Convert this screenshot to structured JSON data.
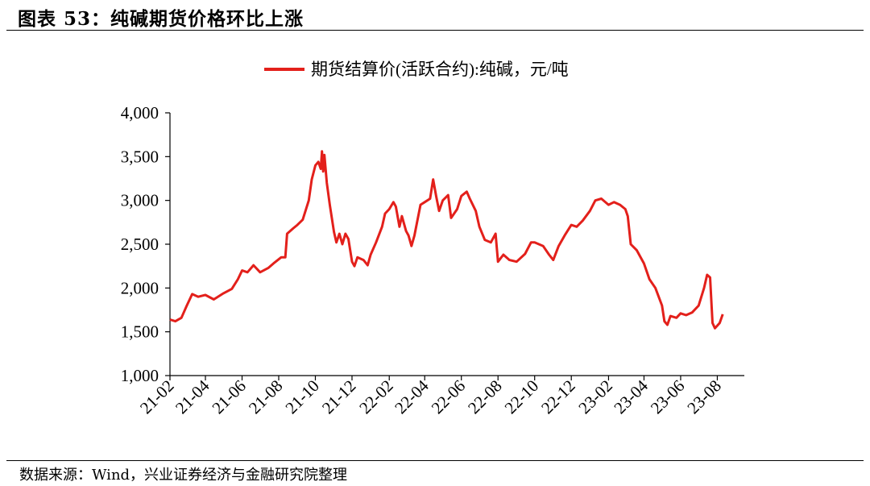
{
  "figure_title": "图表 53：纯碱期货价格环比上涨",
  "source_note": "数据来源：Wind，兴业证券经济与金融研究院整理",
  "colors": {
    "series": "#e3201b",
    "axis": "#000000"
  },
  "chart_data": {
    "type": "line",
    "legend_position": "top-center",
    "grid": false,
    "ylim": [
      1000,
      4000
    ],
    "yticks": [
      1000,
      1500,
      2000,
      2500,
      3000,
      3500,
      4000
    ],
    "ytick_labels": [
      "1,000",
      "1,500",
      "2,000",
      "2,500",
      "3,000",
      "3,500",
      "4,000"
    ],
    "xlim": [
      "2021-02-01",
      "2023-09-15"
    ],
    "xtick_labels": [
      "21-02",
      "21-04",
      "21-06",
      "21-08",
      "21-10",
      "21-12",
      "22-02",
      "22-04",
      "22-06",
      "22-08",
      "22-10",
      "22-12",
      "23-02",
      "23-04",
      "23-06",
      "23-08"
    ],
    "series": [
      {
        "name": "期货结算价(活跃合约):纯碱，元/吨",
        "color": "#e3201b",
        "points": [
          [
            "2021-02-01",
            1640
          ],
          [
            "2021-02-10",
            1620
          ],
          [
            "2021-02-20",
            1660
          ],
          [
            "2021-03-01",
            1800
          ],
          [
            "2021-03-10",
            1930
          ],
          [
            "2021-03-20",
            1900
          ],
          [
            "2021-04-01",
            1920
          ],
          [
            "2021-04-15",
            1870
          ],
          [
            "2021-05-01",
            1940
          ],
          [
            "2021-05-15",
            1990
          ],
          [
            "2021-05-25",
            2100
          ],
          [
            "2021-06-01",
            2200
          ],
          [
            "2021-06-10",
            2180
          ],
          [
            "2021-06-20",
            2260
          ],
          [
            "2021-07-01",
            2180
          ],
          [
            "2021-07-15",
            2230
          ],
          [
            "2021-07-25",
            2290
          ],
          [
            "2021-08-05",
            2350
          ],
          [
            "2021-08-12",
            2350
          ],
          [
            "2021-08-15",
            2620
          ],
          [
            "2021-08-25",
            2680
          ],
          [
            "2021-09-01",
            2720
          ],
          [
            "2021-09-10",
            2780
          ],
          [
            "2021-09-20",
            3000
          ],
          [
            "2021-09-25",
            3240
          ],
          [
            "2021-10-01",
            3400
          ],
          [
            "2021-10-06",
            3440
          ],
          [
            "2021-10-10",
            3360
          ],
          [
            "2021-10-12",
            3560
          ],
          [
            "2021-10-14",
            3330
          ],
          [
            "2021-10-16",
            3520
          ],
          [
            "2021-10-20",
            3200
          ],
          [
            "2021-10-25",
            2950
          ],
          [
            "2021-11-01",
            2640
          ],
          [
            "2021-11-05",
            2520
          ],
          [
            "2021-11-10",
            2620
          ],
          [
            "2021-11-15",
            2500
          ],
          [
            "2021-11-20",
            2620
          ],
          [
            "2021-11-25",
            2560
          ],
          [
            "2021-12-01",
            2300
          ],
          [
            "2021-12-05",
            2250
          ],
          [
            "2021-12-10",
            2350
          ],
          [
            "2021-12-20",
            2320
          ],
          [
            "2021-12-27",
            2260
          ],
          [
            "2022-01-01",
            2380
          ],
          [
            "2022-01-10",
            2520
          ],
          [
            "2022-01-20",
            2700
          ],
          [
            "2022-01-25",
            2850
          ],
          [
            "2022-02-01",
            2900
          ],
          [
            "2022-02-08",
            2980
          ],
          [
            "2022-02-12",
            2930
          ],
          [
            "2022-02-18",
            2700
          ],
          [
            "2022-02-22",
            2820
          ],
          [
            "2022-03-01",
            2650
          ],
          [
            "2022-03-05",
            2600
          ],
          [
            "2022-03-10",
            2480
          ],
          [
            "2022-03-15",
            2600
          ],
          [
            "2022-03-25",
            2950
          ],
          [
            "2022-04-01",
            2980
          ],
          [
            "2022-04-10",
            3020
          ],
          [
            "2022-04-15",
            3240
          ],
          [
            "2022-04-20",
            3050
          ],
          [
            "2022-04-25",
            2880
          ],
          [
            "2022-05-01",
            3000
          ],
          [
            "2022-05-10",
            3060
          ],
          [
            "2022-05-15",
            2800
          ],
          [
            "2022-05-25",
            2900
          ],
          [
            "2022-06-01",
            3050
          ],
          [
            "2022-06-10",
            3100
          ],
          [
            "2022-06-15",
            3020
          ],
          [
            "2022-06-25",
            2880
          ],
          [
            "2022-07-01",
            2700
          ],
          [
            "2022-07-10",
            2550
          ],
          [
            "2022-07-20",
            2520
          ],
          [
            "2022-07-28",
            2620
          ],
          [
            "2022-08-01",
            2300
          ],
          [
            "2022-08-10",
            2380
          ],
          [
            "2022-08-20",
            2320
          ],
          [
            "2022-09-01",
            2300
          ],
          [
            "2022-09-15",
            2390
          ],
          [
            "2022-09-25",
            2520
          ],
          [
            "2022-10-01",
            2520
          ],
          [
            "2022-10-15",
            2480
          ],
          [
            "2022-10-25",
            2380
          ],
          [
            "2022-11-01",
            2320
          ],
          [
            "2022-11-10",
            2480
          ],
          [
            "2022-11-20",
            2600
          ],
          [
            "2022-12-01",
            2720
          ],
          [
            "2022-12-10",
            2700
          ],
          [
            "2022-12-20",
            2770
          ],
          [
            "2023-01-01",
            2880
          ],
          [
            "2023-01-10",
            3000
          ],
          [
            "2023-01-20",
            3020
          ],
          [
            "2023-02-01",
            2950
          ],
          [
            "2023-02-10",
            2980
          ],
          [
            "2023-02-20",
            2950
          ],
          [
            "2023-03-01",
            2900
          ],
          [
            "2023-03-05",
            2820
          ],
          [
            "2023-03-10",
            2500
          ],
          [
            "2023-03-20",
            2430
          ],
          [
            "2023-04-01",
            2280
          ],
          [
            "2023-04-10",
            2100
          ],
          [
            "2023-04-20",
            2000
          ],
          [
            "2023-05-01",
            1800
          ],
          [
            "2023-05-05",
            1620
          ],
          [
            "2023-05-10",
            1580
          ],
          [
            "2023-05-15",
            1680
          ],
          [
            "2023-05-25",
            1660
          ],
          [
            "2023-06-01",
            1710
          ],
          [
            "2023-06-10",
            1690
          ],
          [
            "2023-06-20",
            1720
          ],
          [
            "2023-07-01",
            1800
          ],
          [
            "2023-07-10",
            2000
          ],
          [
            "2023-07-15",
            2150
          ],
          [
            "2023-07-20",
            2120
          ],
          [
            "2023-07-24",
            1600
          ],
          [
            "2023-07-28",
            1540
          ],
          [
            "2023-08-05",
            1600
          ],
          [
            "2023-08-10",
            1700
          ]
        ]
      }
    ]
  }
}
